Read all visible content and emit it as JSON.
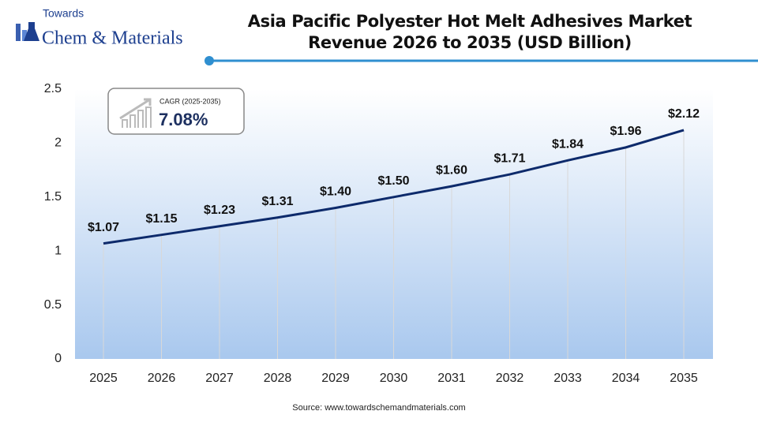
{
  "logo": {
    "top": "Towards",
    "bottom": "Chem & Materials"
  },
  "chart_data": {
    "type": "line",
    "title": "Asia Pacific Polyester Hot Melt Adhesives Market Revenue 2026 to 2035 (USD Billion)",
    "categories": [
      "2025",
      "2026",
      "2027",
      "2028",
      "2029",
      "2030",
      "2031",
      "2032",
      "2033",
      "2034",
      "2035"
    ],
    "values": [
      1.07,
      1.15,
      1.23,
      1.31,
      1.4,
      1.5,
      1.6,
      1.71,
      1.84,
      1.96,
      2.12
    ],
    "value_labels": [
      "$1.07",
      "$1.15",
      "$1.23",
      "$1.31",
      "$1.40",
      "$1.50",
      "$1.60",
      "$1.71",
      "$1.84",
      "$1.96",
      "$2.12"
    ],
    "color": "#0d2a6b",
    "ylim": [
      0,
      2.5
    ],
    "yticks": [
      0,
      0.5,
      1,
      1.5,
      2,
      2.5
    ],
    "cagr": {
      "label": "CAGR (2025-2035)",
      "value": "7.08%"
    },
    "source": "Source: www.towardschemandmaterials.com"
  }
}
